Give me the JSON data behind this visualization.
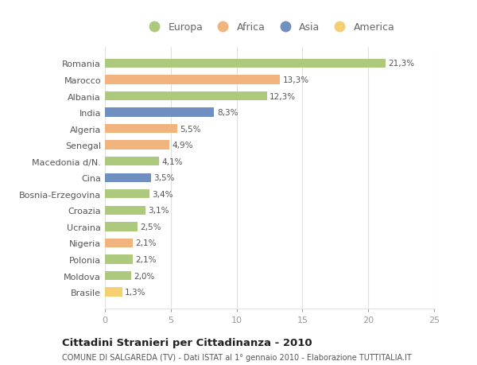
{
  "categories": [
    "Romania",
    "Marocco",
    "Albania",
    "India",
    "Algeria",
    "Senegal",
    "Macedonia d/N.",
    "Cina",
    "Bosnia-Erzegovina",
    "Croazia",
    "Ucraina",
    "Nigeria",
    "Polonia",
    "Moldova",
    "Brasile"
  ],
  "values": [
    21.3,
    13.3,
    12.3,
    8.3,
    5.5,
    4.9,
    4.1,
    3.5,
    3.4,
    3.1,
    2.5,
    2.1,
    2.1,
    2.0,
    1.3
  ],
  "labels": [
    "21,3%",
    "13,3%",
    "12,3%",
    "8,3%",
    "5,5%",
    "4,9%",
    "4,1%",
    "3,5%",
    "3,4%",
    "3,1%",
    "2,5%",
    "2,1%",
    "2,1%",
    "2,0%",
    "1,3%"
  ],
  "colors": [
    "#adc97e",
    "#f2b47e",
    "#adc97e",
    "#6e8fc0",
    "#f2b47e",
    "#f2b47e",
    "#adc97e",
    "#6e8fc0",
    "#adc97e",
    "#adc97e",
    "#adc97e",
    "#f2b47e",
    "#adc97e",
    "#adc97e",
    "#f5d070"
  ],
  "legend_labels": [
    "Europa",
    "Africa",
    "Asia",
    "America"
  ],
  "legend_colors": [
    "#adc97e",
    "#f2b47e",
    "#6e8fc0",
    "#f5d070"
  ],
  "title": "Cittadini Stranieri per Cittadinanza - 2010",
  "subtitle": "COMUNE DI SALGAREDA (TV) - Dati ISTAT al 1° gennaio 2010 - Elaborazione TUTTITALIA.IT",
  "xlim": [
    0,
    25
  ],
  "xticks": [
    0,
    5,
    10,
    15,
    20,
    25
  ],
  "background_color": "#ffffff",
  "bar_height": 0.55,
  "grid_color": "#e0e0e0",
  "label_color": "#555555",
  "tick_color": "#999999"
}
